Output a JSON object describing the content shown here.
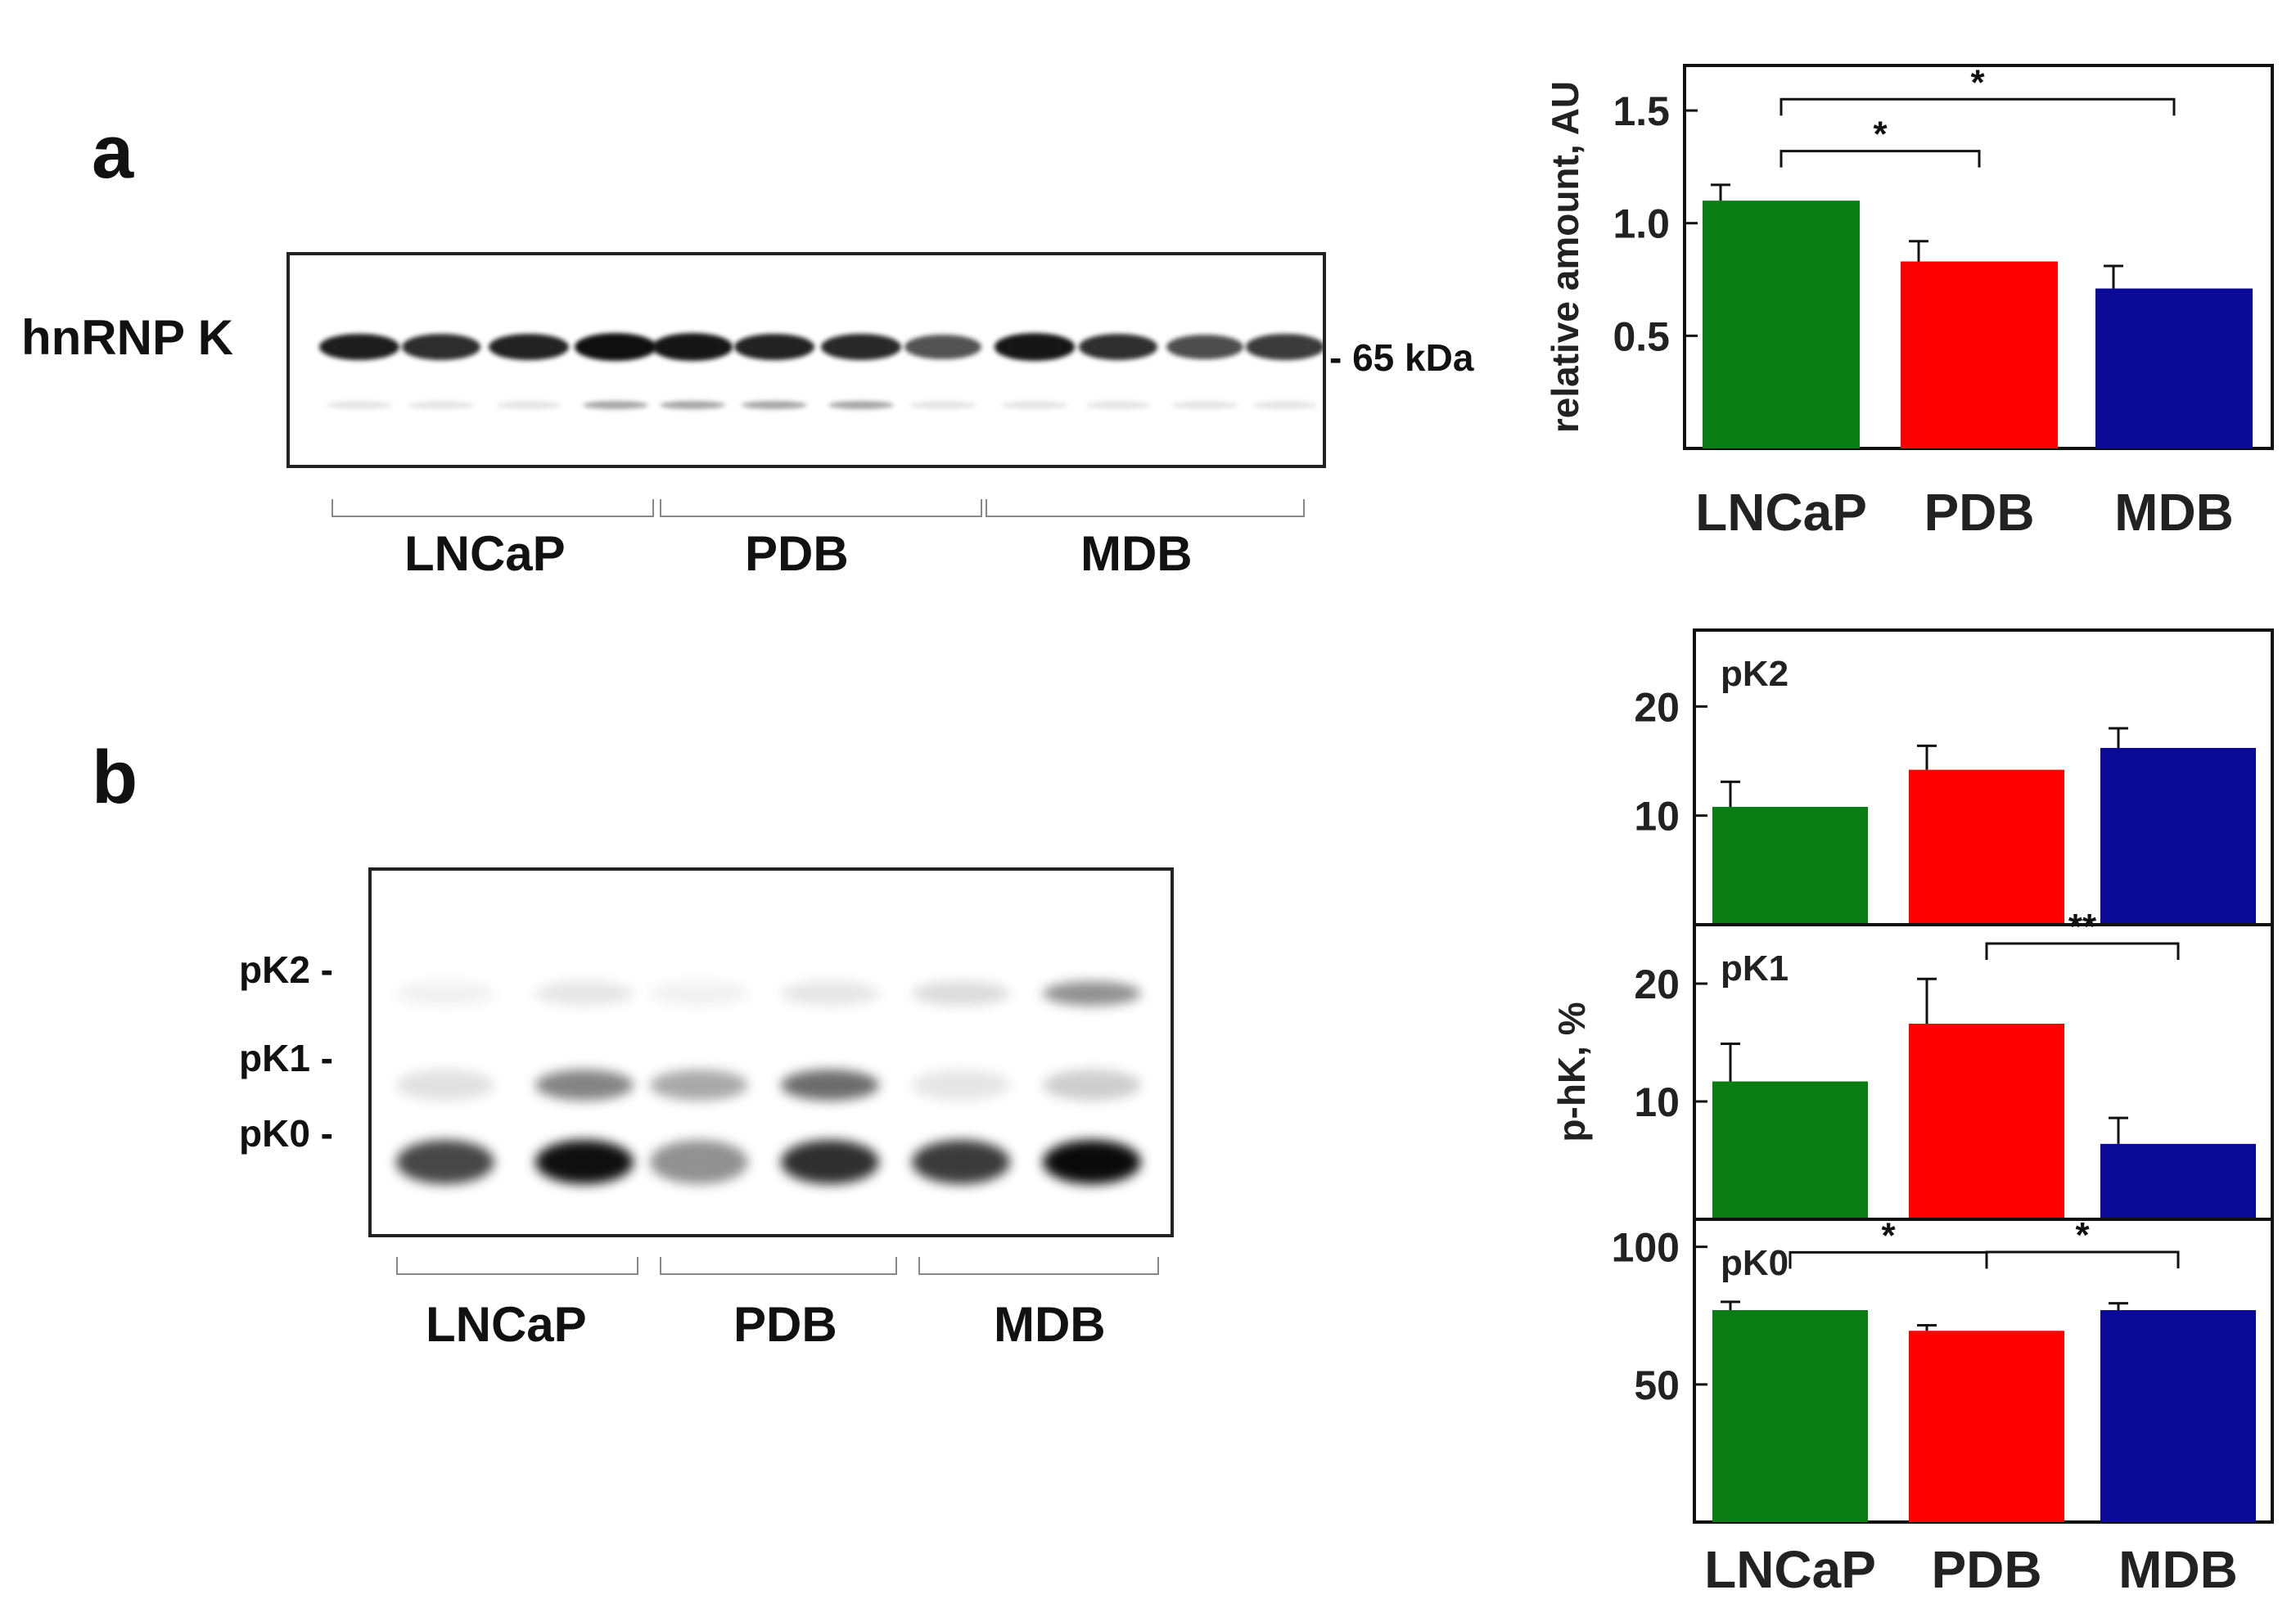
{
  "panels": {
    "a": {
      "letter": "a",
      "blot_label": "hnRNP K",
      "marker_label": "- 65 kDa",
      "groups": [
        "LNCaP",
        "PDB",
        "MDB"
      ],
      "band_intensity": [
        0.92,
        0.86,
        0.9,
        0.98,
        0.95,
        0.9,
        0.88,
        0.7,
        0.95,
        0.85,
        0.72,
        0.8
      ]
    },
    "b": {
      "letter": "b",
      "band_labels": [
        "pK2 -",
        "pK1 -",
        "pK0 -"
      ],
      "groups": [
        "LNCaP",
        "PDB",
        "MDB"
      ]
    }
  },
  "colors": {
    "LNCaP": "#0a7d14",
    "PDB": "#ff0000",
    "MDB": "#0a0a96"
  },
  "chart_data": [
    {
      "type": "bar",
      "categories": [
        "LNCaP",
        "PDB",
        "MDB"
      ],
      "values": [
        1.1,
        0.83,
        0.71
      ],
      "errors": [
        0.07,
        0.09,
        0.1
      ],
      "ylabel": "relative amount, AU",
      "ylim": [
        0.0,
        1.7
      ],
      "yticks": [
        0.5,
        1.0,
        1.5
      ],
      "ytick_labels": [
        "0.5",
        "1.0",
        "1.5"
      ],
      "significance": [
        {
          "from": "LNCaP",
          "to": "PDB",
          "label": "*"
        },
        {
          "from": "LNCaP",
          "to": "MDB",
          "label": "*"
        }
      ]
    },
    {
      "type": "bar",
      "panel_label": "pK2",
      "categories": [
        "LNCaP",
        "PDB",
        "MDB"
      ],
      "values": [
        10.8,
        14.2,
        16.2
      ],
      "errors": [
        2.3,
        2.2,
        1.8
      ],
      "ylim": [
        0,
        27
      ],
      "yticks": [
        10,
        20
      ],
      "ytick_labels": [
        "10",
        "20"
      ],
      "significance": []
    },
    {
      "type": "bar",
      "panel_label": "pK1",
      "categories": [
        "LNCaP",
        "PDB",
        "MDB"
      ],
      "values": [
        11.7,
        16.6,
        6.4
      ],
      "errors": [
        3.2,
        3.8,
        2.2
      ],
      "ylim": [
        0,
        25
      ],
      "yticks": [
        10,
        20
      ],
      "ytick_labels": [
        "10",
        "20"
      ],
      "significance": [
        {
          "from": "PDB",
          "to": "MDB",
          "label": "**"
        }
      ]
    },
    {
      "type": "bar",
      "panel_label": "pK0",
      "categories": [
        "LNCaP",
        "PDB",
        "MDB"
      ],
      "values": [
        77,
        69.5,
        77
      ],
      "errors": [
        3,
        2,
        2.5
      ],
      "ylim": [
        0,
        110
      ],
      "yticks": [
        50,
        100
      ],
      "ytick_labels": [
        "50",
        "100"
      ],
      "significance": [
        {
          "from": "LNCaP",
          "to": "PDB",
          "label": "*"
        },
        {
          "from": "PDB",
          "to": "MDB",
          "label": "*"
        }
      ]
    }
  ],
  "lower_charts": {
    "ylabel": "p-hK, %",
    "categories": [
      "LNCaP",
      "PDB",
      "MDB"
    ]
  }
}
